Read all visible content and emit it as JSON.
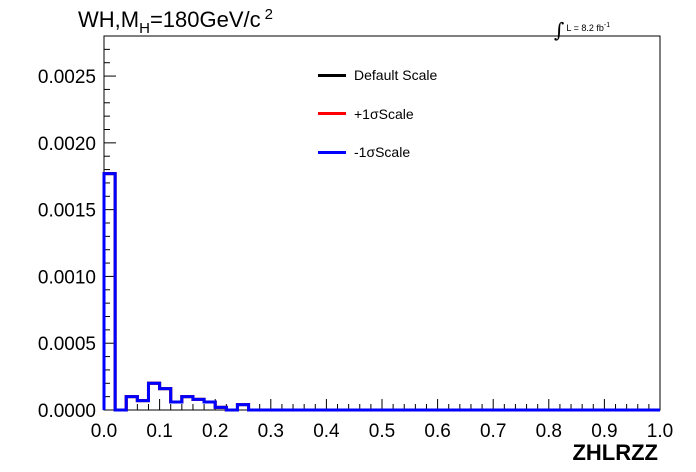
{
  "title": {
    "prefix": "WH,M",
    "subscript": "H",
    "suffix": "=180GeV/c",
    "superscript": "2"
  },
  "luminosity": {
    "integral_symbol": "∫",
    "text": "L = 8.2 fb",
    "superscript": "-1"
  },
  "legend": [
    {
      "label": "Default Scale",
      "color": "#000000"
    },
    {
      "label": "+1σScale",
      "color": "#ff0000"
    },
    {
      "label": "-1σScale",
      "color": "#0000ff"
    }
  ],
  "chart_data": {
    "type": "histogram",
    "xlabel": "ZHLRZZ",
    "ylabel": "",
    "xlim": [
      0.0,
      1.0
    ],
    "ylim": [
      0.0,
      0.0028
    ],
    "x_ticks": [
      "0.0",
      "0.1",
      "0.2",
      "0.3",
      "0.4",
      "0.5",
      "0.6",
      "0.7",
      "0.8",
      "0.9",
      "1.0"
    ],
    "y_ticks": [
      "0.0000",
      "0.0005",
      "0.0010",
      "0.0015",
      "0.0020",
      "0.0025"
    ],
    "bin_edges": [
      0.0,
      0.02,
      0.04,
      0.06,
      0.08,
      0.1,
      0.12,
      0.14,
      0.16,
      0.18,
      0.2,
      0.22,
      0.24,
      0.26,
      0.28,
      0.3,
      0.32,
      0.34,
      0.36,
      0.38,
      0.4,
      0.42,
      0.44,
      0.46,
      0.48,
      0.5,
      0.52,
      0.54,
      0.56,
      0.58,
      0.6,
      0.62,
      0.64,
      0.66,
      0.68,
      0.7,
      0.72,
      0.74,
      0.76,
      0.78,
      0.8,
      0.82,
      0.84,
      0.86,
      0.88,
      0.9,
      0.92,
      0.94,
      0.96,
      0.98,
      1.0
    ],
    "series": [
      {
        "name": "Default Scale",
        "color": "#000000",
        "values": [
          0.00177,
          0.0,
          0.0001,
          7e-05,
          0.0002,
          0.00016,
          6e-05,
          0.0001,
          8e-05,
          6e-05,
          2e-05,
          0.0,
          4e-05,
          0.0,
          0,
          0,
          0,
          0,
          0,
          0,
          0,
          0,
          0,
          0,
          0,
          0,
          0,
          0,
          0,
          0,
          0,
          0,
          0,
          0,
          0,
          0,
          0,
          0,
          0,
          0,
          0,
          0,
          0,
          0,
          0,
          0,
          0,
          0,
          0,
          0
        ]
      },
      {
        "name": "+1σScale",
        "color": "#ff0000",
        "values": [
          0.00177,
          0.0,
          0.0001,
          7e-05,
          0.0002,
          0.00016,
          6e-05,
          0.0001,
          8e-05,
          6e-05,
          2e-05,
          0.0,
          4e-05,
          0.0,
          0,
          0,
          0,
          0,
          0,
          0,
          0,
          0,
          0,
          0,
          0,
          0,
          0,
          0,
          0,
          0,
          0,
          0,
          0,
          0,
          0,
          0,
          0,
          0,
          0,
          0,
          0,
          0,
          0,
          0,
          0,
          0,
          0,
          0,
          0,
          0
        ]
      },
      {
        "name": "-1σScale",
        "color": "#0000ff",
        "values": [
          0.00177,
          0.0,
          0.0001,
          7e-05,
          0.0002,
          0.00016,
          6e-05,
          0.0001,
          8e-05,
          6e-05,
          2e-05,
          0.0,
          4e-05,
          0.0,
          0,
          0,
          0,
          0,
          0,
          0,
          0,
          0,
          0,
          0,
          0,
          0,
          0,
          0,
          0,
          0,
          0,
          0,
          0,
          0,
          0,
          0,
          0,
          0,
          0,
          0,
          0,
          0,
          0,
          0,
          0,
          0,
          0,
          0,
          0,
          0
        ]
      }
    ]
  }
}
